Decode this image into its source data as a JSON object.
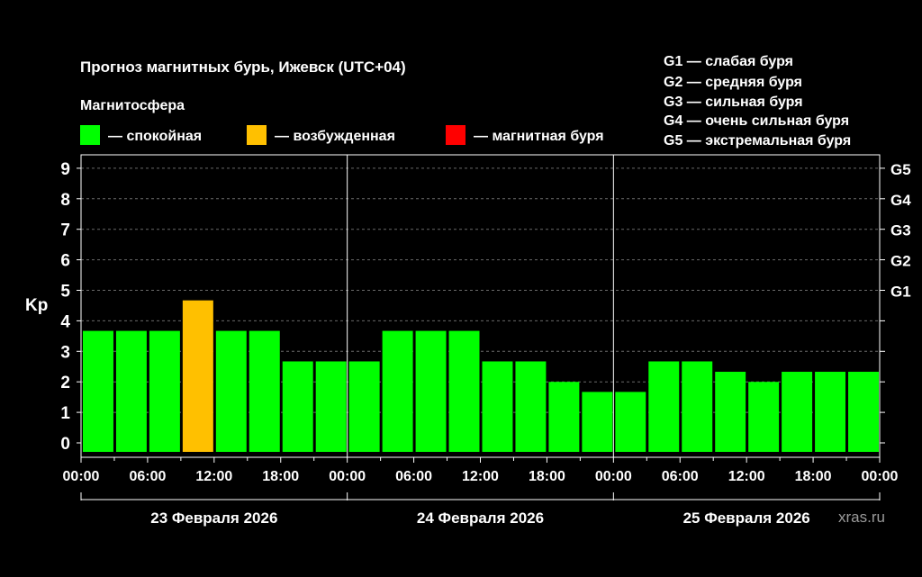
{
  "title": "Прогноз магнитных бурь, Ижевск (UTC+04)",
  "legend": {
    "heading": "Магнитосфера",
    "items": [
      {
        "label": "— спокойная",
        "color": "#00ff00"
      },
      {
        "label": "— возбужденная",
        "color": "#ffc000"
      },
      {
        "label": "— магнитная буря",
        "color": "#ff0000"
      }
    ]
  },
  "g_scale": [
    "G1 — слабая буря",
    "G2 — средняя буря",
    "G3 — сильная буря",
    "G4 — очень сильная буря",
    "G5 — экстремальная буря"
  ],
  "watermark": "xras.ru",
  "chart_data": {
    "type": "bar",
    "ylabel": "Kp",
    "ylim": [
      0,
      9
    ],
    "yticks": [
      0,
      1,
      2,
      3,
      4,
      5,
      6,
      7,
      8,
      9
    ],
    "right_ticks": [
      {
        "value": 5,
        "label": "G1"
      },
      {
        "value": 6,
        "label": "G2"
      },
      {
        "value": 7,
        "label": "G3"
      },
      {
        "value": 8,
        "label": "G4"
      },
      {
        "value": 9,
        "label": "G5"
      }
    ],
    "xtick_labels": [
      "00:00",
      "06:00",
      "12:00",
      "18:00",
      "00:00",
      "06:00",
      "12:00",
      "18:00",
      "00:00",
      "06:00",
      "12:00",
      "18:00",
      "00:00"
    ],
    "days": [
      "23 Февраля 2026",
      "24 Февраля 2026",
      "25 Февраля 2026"
    ],
    "grid": true,
    "values": [
      3.67,
      3.67,
      3.67,
      4.67,
      3.67,
      3.67,
      2.67,
      2.67,
      2.67,
      3.67,
      3.67,
      3.67,
      2.67,
      2.67,
      2.0,
      1.67,
      1.67,
      2.67,
      2.67,
      2.33,
      2.0,
      2.33,
      2.33,
      2.33
    ],
    "colors": [
      "#00ff00",
      "#00ff00",
      "#00ff00",
      "#ffc000",
      "#00ff00",
      "#00ff00",
      "#00ff00",
      "#00ff00",
      "#00ff00",
      "#00ff00",
      "#00ff00",
      "#00ff00",
      "#00ff00",
      "#00ff00",
      "#00ff00",
      "#00ff00",
      "#00ff00",
      "#00ff00",
      "#00ff00",
      "#00ff00",
      "#00ff00",
      "#00ff00",
      "#00ff00",
      "#00ff00"
    ]
  }
}
